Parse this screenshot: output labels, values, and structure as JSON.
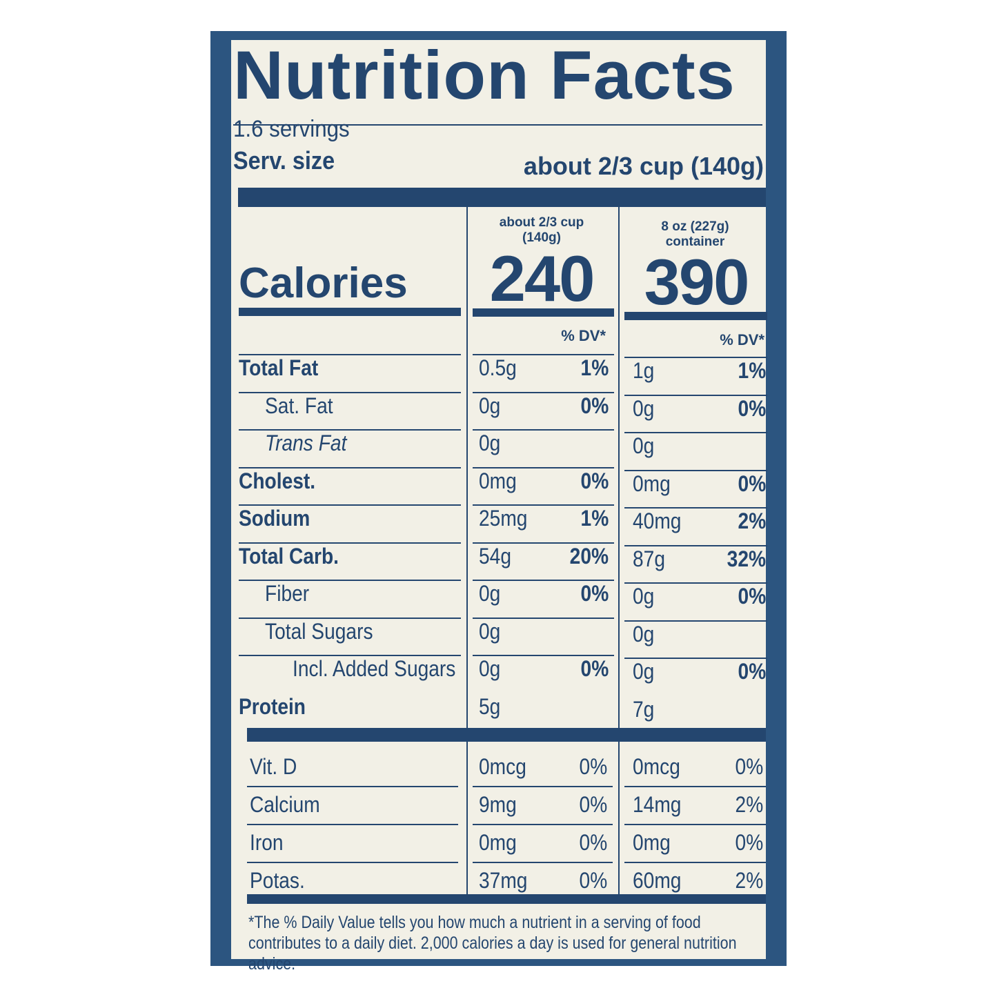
{
  "title": "Nutrition Facts",
  "servings": "1.6 servings",
  "serving_size_label": "Serv. size",
  "serving_size_value": "about 2/3 cup (140g)",
  "columns": [
    {
      "header_line1": "about 2/3 cup",
      "header_line2": "(140g)",
      "calories": "240",
      "dv_label": "% DV*"
    },
    {
      "header_line1": "8 oz (227g)",
      "header_line2": "container",
      "calories": "390",
      "dv_label": "% DV*"
    }
  ],
  "calories_label": "Calories",
  "rows": [
    {
      "name": "Total Fat",
      "style": "bold",
      "indent": 0,
      "v1": "0.5g",
      "d1": "1%",
      "v2": "1g",
      "d2": "1%"
    },
    {
      "name": "Sat. Fat",
      "style": "normal",
      "indent": 1,
      "v1": "0g",
      "d1": "0%",
      "v2": "0g",
      "d2": "0%"
    },
    {
      "name": "Trans Fat",
      "style": "italic",
      "indent": 1,
      "v1": "0g",
      "d1": "",
      "v2": "0g",
      "d2": ""
    },
    {
      "name": "Cholest.",
      "style": "bold",
      "indent": 0,
      "v1": "0mg",
      "d1": "0%",
      "v2": "0mg",
      "d2": "0%"
    },
    {
      "name": "Sodium",
      "style": "bold",
      "indent": 0,
      "v1": "25mg",
      "d1": "1%",
      "v2": "40mg",
      "d2": "2%"
    },
    {
      "name": "Total Carb.",
      "style": "bold",
      "indent": 0,
      "v1": "54g",
      "d1": "20%",
      "v2": "87g",
      "d2": "32%"
    },
    {
      "name": "Fiber",
      "style": "normal",
      "indent": 1,
      "v1": "0g",
      "d1": "0%",
      "v2": "0g",
      "d2": "0%"
    },
    {
      "name": "Total Sugars",
      "style": "normal",
      "indent": 1,
      "v1": "0g",
      "d1": "",
      "v2": "0g",
      "d2": ""
    },
    {
      "name": "Incl. Added Sugars",
      "style": "normal",
      "indent": 2,
      "v1": "0g",
      "d1": "0%",
      "v2": "0g",
      "d2": "0%"
    },
    {
      "name": "Protein",
      "style": "bold",
      "indent": 0,
      "v1": "5g",
      "d1": "",
      "v2": "7g",
      "d2": ""
    }
  ],
  "vitamins": [
    {
      "name": "Vit. D",
      "v1": "0mcg",
      "d1": "0%",
      "v2": "0mcg",
      "d2": "0%"
    },
    {
      "name": "Calcium",
      "v1": "9mg",
      "d1": "0%",
      "v2": "14mg",
      "d2": "2%"
    },
    {
      "name": "Iron",
      "v1": "0mg",
      "d1": "0%",
      "v2": "0mg",
      "d2": "0%"
    },
    {
      "name": "Potas.",
      "v1": "37mg",
      "d1": "0%",
      "v2": "60mg",
      "d2": "2%"
    }
  ],
  "footnote": "*The % Daily Value tells you how much a nutrient in a serving of food contributes to a daily diet. 2,000 calories a day is used for general nutrition advice.",
  "colors": {
    "ink": "#24466f",
    "panel": "#2c5580",
    "paper": "#f2f0e6"
  }
}
